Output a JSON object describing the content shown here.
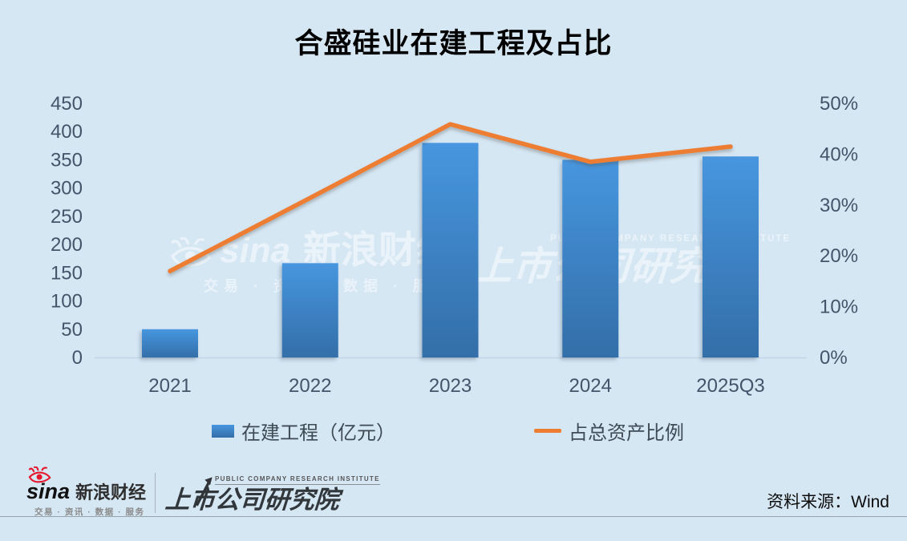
{
  "title": "合盛硅业在建工程及占比",
  "colors": {
    "bg": "#D6E7F4",
    "bar_top": "#4796DF",
    "bar_bottom": "#336EA8",
    "line": "#ED7D31",
    "axis_text": "#44546A",
    "legend_text": "#3E4A54",
    "title_text": "#000000",
    "sina_red": "#E6162D",
    "separator": "#99A3AD"
  },
  "chart_data": {
    "type": "bar+line combo",
    "title": "合盛硅业在建工程及占比",
    "categories": [
      "2021",
      "2022",
      "2023",
      "2024",
      "2025Q3"
    ],
    "series": [
      {
        "name": "在建工程（亿元）",
        "type": "bar",
        "axis": "left",
        "values": [
          50,
          167,
          380,
          350,
          356
        ]
      },
      {
        "name": "占总资产比例",
        "type": "line",
        "axis": "right",
        "unit": "%",
        "values": [
          17.0,
          31.4,
          45.9,
          38.5,
          41.5
        ]
      }
    ],
    "left_axis": {
      "min": 0,
      "max": 450,
      "step": 50,
      "ticks": [
        "450",
        "400",
        "350",
        "300",
        "250",
        "200",
        "150",
        "100",
        "50",
        "0"
      ]
    },
    "right_axis": {
      "min": 0,
      "max": 50,
      "step": 10,
      "ticks": [
        "50%",
        "40%",
        "30%",
        "20%",
        "10%",
        "0%"
      ]
    },
    "grid": false,
    "legend_position": "bottom"
  },
  "watermarks": {
    "sina": {
      "brand": "sina",
      "cjk": "新浪财经",
      "tagline": "交易 · 资讯 · 数据 · 服务"
    },
    "pcri": {
      "en": "PUBLIC COMPANY RESEARCH INSTITUTE",
      "cjk": "上市公司研究院"
    }
  },
  "footer": {
    "sina_brand": "sina",
    "sina_cjk": "新浪财经",
    "sina_tagline": "交易 · 资讯 · 数据 · 服务",
    "pcri_en": "PUBLIC COMPANY RESEARCH INSTITUTE",
    "pcri_cjk": "上市公司研究院",
    "source": "资料来源：Wind"
  }
}
